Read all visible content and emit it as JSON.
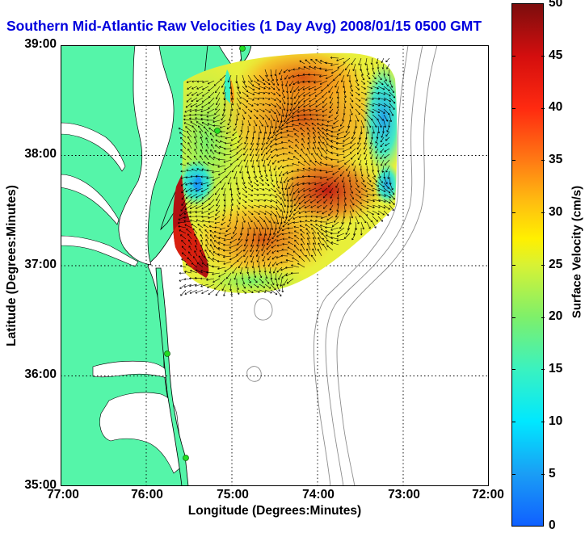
{
  "title": "Southern Mid-Atlantic Raw Velocities (1 Day Avg) 2008/01/15 0500 GMT",
  "xaxis": {
    "label": "Longitude (Degrees:Minutes)",
    "ticks": [
      "77:00",
      "76:00",
      "75:00",
      "74:00",
      "73:00",
      "72:00"
    ]
  },
  "yaxis": {
    "label": "Latitude (Degrees:Minutes)",
    "ticks": [
      "39:00",
      "38:00",
      "37:00",
      "36:00",
      "35:00"
    ]
  },
  "colorbar": {
    "label": "Surface Velocity (cm/s)",
    "ticks": [
      "50",
      "45",
      "40",
      "35",
      "30",
      "25",
      "20",
      "15",
      "10",
      "5",
      "0"
    ],
    "min": 0,
    "max": 50
  },
  "colors": {
    "land": "#55f5a9",
    "water": "#ffffff",
    "coast": "#000000",
    "bathymetry": "#8c8c8c",
    "station": "#22dd22",
    "arrow": "#000000",
    "title": "#0000dd"
  },
  "grid": "dotted",
  "extent": {
    "lon": [
      77,
      72
    ],
    "lat": [
      35,
      39
    ]
  }
}
